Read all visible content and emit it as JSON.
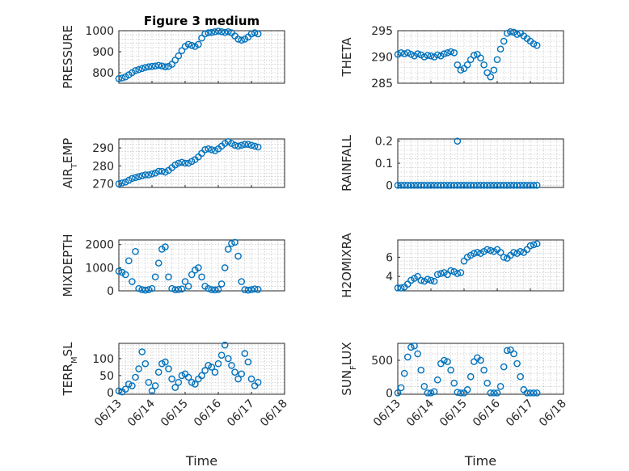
{
  "figure": {
    "title": "Figure 3 medium",
    "marker_color": "#0072bd",
    "marker": "open-circle",
    "grid": true
  },
  "chart_data": [
    {
      "type": "scatter",
      "name": "pressure",
      "title": "Figure 3 medium",
      "ylabel": "PRESSURE",
      "ylabel_sub": "",
      "ylabel_rest": "",
      "xlabel": "",
      "xlim": [
        0,
        5
      ],
      "ylim": [
        750,
        1000
      ],
      "yticks": [
        800,
        900,
        1000
      ],
      "ytick_labels": [
        "800",
        "900",
        "1000"
      ],
      "xticks": [
        0,
        1,
        2,
        3,
        4,
        5
      ],
      "xtick_labels": [
        "06/13",
        "06/14",
        "06/15",
        "06/16",
        "06/17",
        "06/18"
      ],
      "show_xtick_labels": false,
      "x": [
        0.0,
        0.1,
        0.2,
        0.3,
        0.4,
        0.5,
        0.6,
        0.7,
        0.8,
        0.9,
        1.0,
        1.1,
        1.2,
        1.3,
        1.4,
        1.5,
        1.6,
        1.7,
        1.8,
        1.9,
        2.0,
        2.1,
        2.2,
        2.3,
        2.4,
        2.5,
        2.6,
        2.7,
        2.8,
        2.9,
        3.0,
        3.1,
        3.2,
        3.3,
        3.4,
        3.5,
        3.6,
        3.7,
        3.8,
        3.9,
        4.0,
        4.1,
        4.2
      ],
      "y": [
        772,
        775,
        780,
        790,
        800,
        810,
        815,
        820,
        825,
        828,
        830,
        832,
        835,
        832,
        828,
        830,
        840,
        860,
        880,
        905,
        925,
        935,
        930,
        925,
        935,
        965,
        985,
        990,
        992,
        995,
        998,
        995,
        992,
        995,
        990,
        975,
        960,
        955,
        960,
        970,
        985,
        990,
        985
      ]
    },
    {
      "type": "scatter",
      "name": "theta",
      "title": "",
      "ylabel": "THETA",
      "ylabel_sub": "",
      "ylabel_rest": "",
      "xlabel": "",
      "xlim": [
        0,
        5
      ],
      "ylim": [
        285,
        295
      ],
      "yticks": [
        285,
        290,
        295
      ],
      "ytick_labels": [
        "285",
        "290",
        "295"
      ],
      "xticks": [
        0,
        1,
        2,
        3,
        4,
        5
      ],
      "xtick_labels": [
        "06/13",
        "06/14",
        "06/15",
        "06/16",
        "06/17",
        "06/18"
      ],
      "show_xtick_labels": false,
      "x": [
        0.0,
        0.1,
        0.2,
        0.3,
        0.4,
        0.5,
        0.6,
        0.7,
        0.8,
        0.9,
        1.0,
        1.1,
        1.2,
        1.3,
        1.4,
        1.5,
        1.6,
        1.7,
        1.8,
        1.9,
        2.0,
        2.1,
        2.2,
        2.3,
        2.4,
        2.5,
        2.6,
        2.7,
        2.8,
        2.9,
        3.0,
        3.1,
        3.2,
        3.3,
        3.4,
        3.5,
        3.6,
        3.7,
        3.8,
        3.9,
        4.0,
        4.1,
        4.2
      ],
      "y": [
        290.5,
        290.8,
        290.6,
        290.8,
        290.5,
        290.2,
        290.6,
        290.4,
        290.0,
        290.3,
        290.2,
        290.0,
        290.4,
        290.2,
        290.6,
        290.8,
        291.0,
        290.8,
        288.5,
        287.5,
        287.8,
        288.5,
        289.5,
        290.3,
        290.5,
        289.8,
        288.5,
        287.0,
        286.2,
        287.5,
        289.5,
        291.5,
        293.0,
        294.5,
        294.8,
        294.7,
        294.3,
        294.5,
        294.0,
        293.5,
        293.0,
        292.5,
        292.2
      ]
    },
    {
      "type": "scatter",
      "name": "air_temp",
      "title": "",
      "ylabel": "AIR",
      "ylabel_sub": "T",
      "ylabel_rest": "EMP",
      "xlabel": "",
      "xlim": [
        0,
        5
      ],
      "ylim": [
        268,
        295
      ],
      "yticks": [
        270,
        280,
        290
      ],
      "ytick_labels": [
        "270",
        "280",
        "290"
      ],
      "xticks": [
        0,
        1,
        2,
        3,
        4,
        5
      ],
      "xtick_labels": [
        "06/13",
        "06/14",
        "06/15",
        "06/16",
        "06/17",
        "06/18"
      ],
      "show_xtick_labels": false,
      "x": [
        0.0,
        0.1,
        0.2,
        0.3,
        0.4,
        0.5,
        0.6,
        0.7,
        0.8,
        0.9,
        1.0,
        1.1,
        1.2,
        1.3,
        1.4,
        1.5,
        1.6,
        1.7,
        1.8,
        1.9,
        2.0,
        2.1,
        2.2,
        2.3,
        2.4,
        2.5,
        2.6,
        2.7,
        2.8,
        2.9,
        3.0,
        3.1,
        3.2,
        3.3,
        3.4,
        3.5,
        3.6,
        3.7,
        3.8,
        3.9,
        4.0,
        4.1,
        4.2
      ],
      "y": [
        270,
        270.5,
        271,
        272,
        273,
        273.5,
        274,
        274.5,
        275,
        275,
        275.5,
        276,
        277,
        277,
        276.5,
        277.5,
        279,
        280.5,
        281.5,
        282,
        281.5,
        281.5,
        282.5,
        283.5,
        285,
        287,
        289,
        289.5,
        289,
        288.5,
        289.5,
        291,
        292.5,
        293.5,
        292.5,
        291.5,
        291,
        291.5,
        292,
        292,
        291.5,
        291,
        290.5
      ]
    },
    {
      "type": "scatter",
      "name": "rainfall",
      "title": "",
      "ylabel": "RAINFALL",
      "ylabel_sub": "",
      "ylabel_rest": "",
      "xlabel": "",
      "xlim": [
        0,
        5
      ],
      "ylim": [
        -0.01,
        0.21
      ],
      "yticks": [
        0,
        0.1,
        0.2
      ],
      "ytick_labels": [
        "0",
        "0.1",
        "0.2"
      ],
      "xticks": [
        0,
        1,
        2,
        3,
        4,
        5
      ],
      "xtick_labels": [
        "06/13",
        "06/14",
        "06/15",
        "06/16",
        "06/17",
        "06/18"
      ],
      "show_xtick_labels": false,
      "x": [
        0.0,
        0.1,
        0.2,
        0.3,
        0.4,
        0.5,
        0.6,
        0.7,
        0.8,
        0.9,
        1.0,
        1.1,
        1.2,
        1.3,
        1.4,
        1.5,
        1.6,
        1.7,
        1.8,
        1.9,
        2.0,
        2.1,
        2.2,
        2.3,
        2.4,
        2.5,
        2.6,
        2.7,
        2.8,
        2.9,
        3.0,
        3.1,
        3.2,
        3.3,
        3.4,
        3.5,
        3.6,
        3.7,
        3.8,
        3.9,
        4.0,
        4.1,
        4.2,
        1.8
      ],
      "y": [
        0,
        0,
        0,
        0,
        0,
        0,
        0,
        0,
        0,
        0,
        0,
        0,
        0,
        0,
        0,
        0,
        0,
        0,
        0,
        0,
        0,
        0,
        0,
        0,
        0,
        0,
        0,
        0,
        0,
        0,
        0,
        0,
        0,
        0,
        0,
        0,
        0,
        0,
        0,
        0,
        0,
        0,
        0,
        0.2
      ]
    },
    {
      "type": "scatter",
      "name": "mixdepth",
      "title": "",
      "ylabel": "MIXDEPTH",
      "ylabel_sub": "",
      "ylabel_rest": "",
      "xlabel": "",
      "xlim": [
        0,
        5
      ],
      "ylim": [
        0,
        2200
      ],
      "yticks": [
        0,
        1000,
        2000
      ],
      "ytick_labels": [
        "0",
        "1000",
        "2000"
      ],
      "xticks": [
        0,
        1,
        2,
        3,
        4,
        5
      ],
      "xtick_labels": [
        "06/13",
        "06/14",
        "06/15",
        "06/16",
        "06/17",
        "06/18"
      ],
      "show_xtick_labels": false,
      "x": [
        0.0,
        0.1,
        0.2,
        0.3,
        0.4,
        0.5,
        0.6,
        0.7,
        0.8,
        0.9,
        1.0,
        1.1,
        1.2,
        1.3,
        1.4,
        1.5,
        1.6,
        1.7,
        1.8,
        1.9,
        2.0,
        2.1,
        2.2,
        2.3,
        2.4,
        2.5,
        2.6,
        2.7,
        2.8,
        2.9,
        3.0,
        3.1,
        3.2,
        3.3,
        3.4,
        3.5,
        3.6,
        3.7,
        3.8,
        3.9,
        4.0,
        4.1,
        4.2
      ],
      "y": [
        850,
        800,
        700,
        1300,
        400,
        1700,
        100,
        50,
        30,
        50,
        100,
        600,
        1200,
        1800,
        1900,
        600,
        100,
        50,
        60,
        80,
        400,
        200,
        700,
        900,
        1000,
        600,
        200,
        100,
        50,
        40,
        60,
        300,
        1000,
        1800,
        2050,
        2100,
        1500,
        400,
        50,
        30,
        50,
        80,
        60
      ]
    },
    {
      "type": "scatter",
      "name": "h2omixra",
      "title": "",
      "ylabel": "H2OMIXRA",
      "ylabel_sub": "",
      "ylabel_rest": "",
      "xlabel": "",
      "xlim": [
        0,
        5
      ],
      "ylim": [
        2.5,
        7.8
      ],
      "yticks": [
        4,
        6
      ],
      "ytick_labels": [
        "4",
        "6"
      ],
      "xticks": [
        0,
        1,
        2,
        3,
        4,
        5
      ],
      "xtick_labels": [
        "06/13",
        "06/14",
        "06/15",
        "06/16",
        "06/17",
        "06/18"
      ],
      "show_xtick_labels": false,
      "x": [
        0.0,
        0.1,
        0.2,
        0.3,
        0.4,
        0.5,
        0.6,
        0.7,
        0.8,
        0.9,
        1.0,
        1.1,
        1.2,
        1.3,
        1.4,
        1.5,
        1.6,
        1.7,
        1.8,
        1.9,
        2.0,
        2.1,
        2.2,
        2.3,
        2.4,
        2.5,
        2.6,
        2.7,
        2.8,
        2.9,
        3.0,
        3.1,
        3.2,
        3.3,
        3.4,
        3.5,
        3.6,
        3.7,
        3.8,
        3.9,
        4.0,
        4.1,
        4.2
      ],
      "y": [
        2.8,
        2.8,
        2.9,
        3.2,
        3.6,
        3.8,
        4.0,
        3.6,
        3.5,
        3.7,
        3.6,
        3.5,
        4.2,
        4.3,
        4.4,
        4.2,
        4.6,
        4.5,
        4.3,
        4.4,
        5.6,
        6.0,
        6.2,
        6.4,
        6.5,
        6.4,
        6.6,
        6.8,
        6.7,
        6.6,
        6.8,
        6.5,
        6.0,
        5.9,
        6.2,
        6.5,
        6.4,
        6.6,
        6.5,
        6.8,
        7.2,
        7.3,
        7.4
      ]
    },
    {
      "type": "scatter",
      "name": "terr_msl",
      "title": "",
      "ylabel": "TERR",
      "ylabel_sub": "M",
      "ylabel_rest": "SL",
      "xlabel": "Time",
      "xlim": [
        0,
        5
      ],
      "ylim": [
        -5,
        145
      ],
      "yticks": [
        0,
        50,
        100
      ],
      "ytick_labels": [
        "0",
        "50",
        "100"
      ],
      "xticks": [
        0,
        1,
        2,
        3,
        4,
        5
      ],
      "xtick_labels": [
        "06/13",
        "06/14",
        "06/15",
        "06/16",
        "06/17",
        "06/18"
      ],
      "show_xtick_labels": true,
      "x": [
        0.0,
        0.1,
        0.2,
        0.3,
        0.4,
        0.5,
        0.6,
        0.7,
        0.8,
        0.9,
        1.0,
        1.1,
        1.2,
        1.3,
        1.4,
        1.5,
        1.6,
        1.7,
        1.8,
        1.9,
        2.0,
        2.1,
        2.2,
        2.3,
        2.4,
        2.5,
        2.6,
        2.7,
        2.8,
        2.9,
        3.0,
        3.1,
        3.2,
        3.3,
        3.4,
        3.5,
        3.6,
        3.7,
        3.8,
        3.9,
        4.0,
        4.1,
        4.2
      ],
      "y": [
        5,
        2,
        10,
        25,
        20,
        45,
        70,
        120,
        85,
        30,
        5,
        20,
        60,
        85,
        90,
        70,
        40,
        15,
        30,
        50,
        55,
        45,
        30,
        25,
        40,
        50,
        65,
        80,
        75,
        60,
        85,
        110,
        140,
        100,
        80,
        60,
        40,
        55,
        115,
        90,
        40,
        20,
        30
      ]
    },
    {
      "type": "scatter",
      "name": "sun_flux",
      "title": "",
      "ylabel": "SUN",
      "ylabel_sub": "F",
      "ylabel_rest": "LUX",
      "xlabel": "Time",
      "xlim": [
        0,
        5
      ],
      "ylim": [
        -20,
        760
      ],
      "yticks": [
        0,
        500
      ],
      "ytick_labels": [
        "0",
        "500"
      ],
      "xticks": [
        0,
        1,
        2,
        3,
        4,
        5
      ],
      "xtick_labels": [
        "06/13",
        "06/14",
        "06/15",
        "06/16",
        "06/17",
        "06/18"
      ],
      "show_xtick_labels": true,
      "x": [
        0.0,
        0.1,
        0.2,
        0.3,
        0.4,
        0.5,
        0.6,
        0.7,
        0.8,
        0.9,
        1.0,
        1.1,
        1.2,
        1.3,
        1.4,
        1.5,
        1.6,
        1.7,
        1.8,
        1.9,
        2.0,
        2.1,
        2.2,
        2.3,
        2.4,
        2.5,
        2.6,
        2.7,
        2.8,
        2.9,
        3.0,
        3.1,
        3.2,
        3.3,
        3.4,
        3.5,
        3.6,
        3.7,
        3.8,
        3.9,
        4.0,
        4.1,
        4.2
      ],
      "y": [
        0,
        80,
        300,
        550,
        700,
        720,
        600,
        350,
        100,
        0,
        0,
        20,
        200,
        450,
        500,
        480,
        350,
        150,
        10,
        0,
        0,
        50,
        250,
        480,
        540,
        500,
        350,
        150,
        0,
        0,
        0,
        100,
        400,
        650,
        660,
        600,
        450,
        250,
        50,
        0,
        0,
        0,
        0
      ]
    }
  ]
}
